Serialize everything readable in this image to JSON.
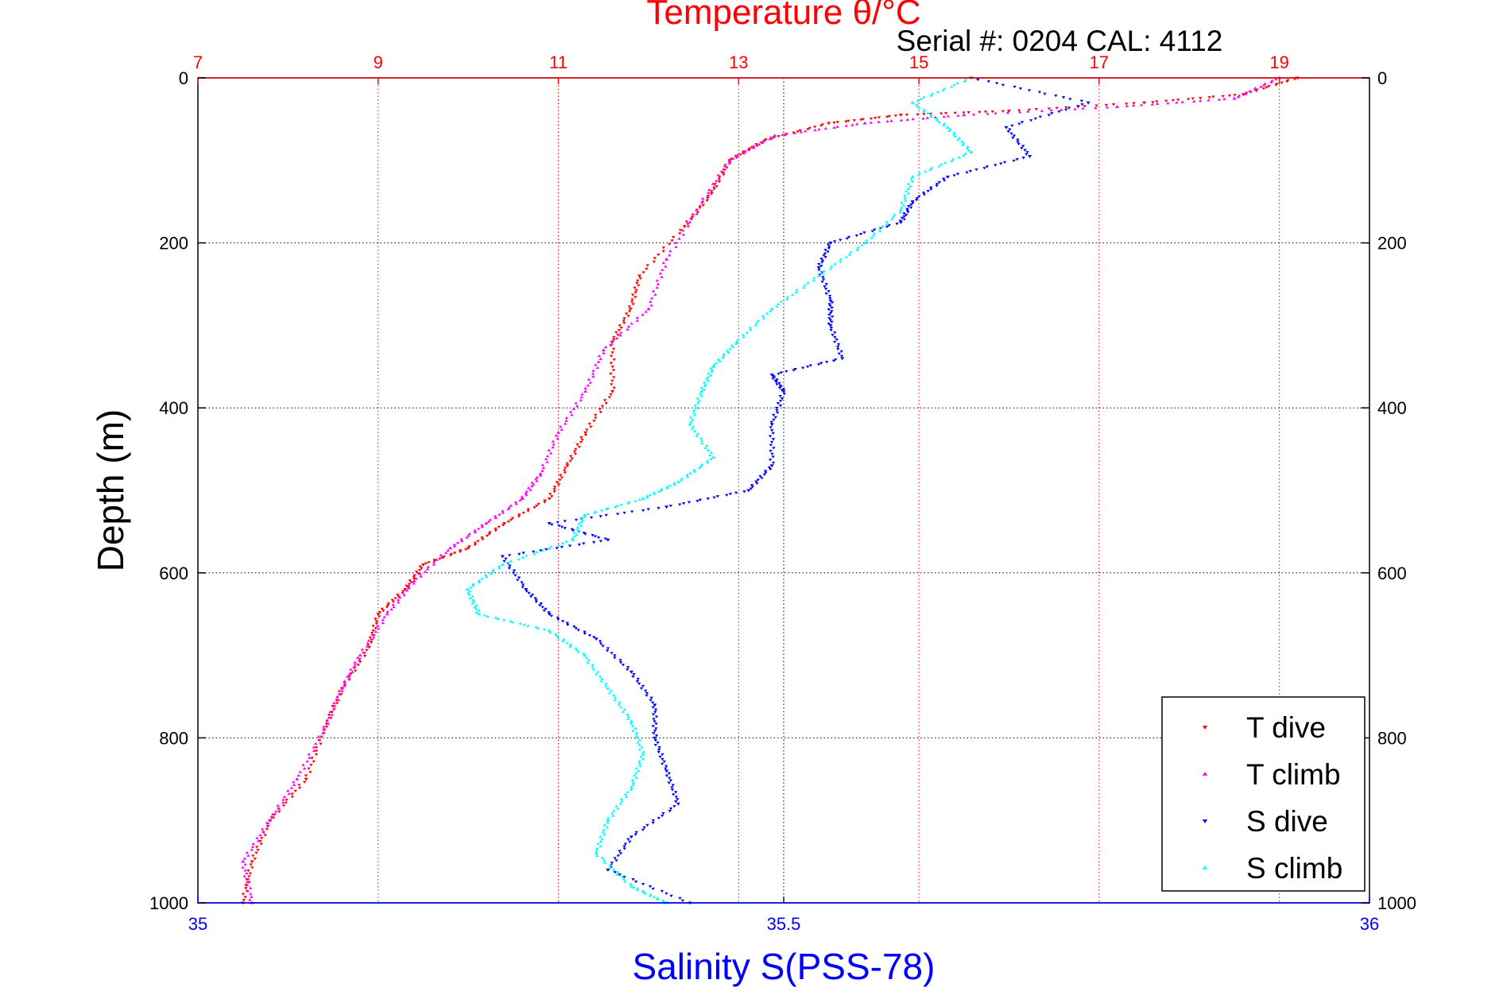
{
  "chart_data": {
    "type": "scatter",
    "title": "Temperature θ/°C",
    "subtitle": "Serial #: 0204  CAL: 4112",
    "xlabel_bottom": "Salinity S(PSS-78)",
    "ylabel": "Depth (m)",
    "xlim_top": [
      7,
      20
    ],
    "xticks_top": [
      "7",
      "9",
      "11",
      "13",
      "15",
      "17",
      "19"
    ],
    "xlim_bottom": [
      35,
      36
    ],
    "xticks_bottom": [
      "35",
      "35.5",
      "36"
    ],
    "ylim": [
      0,
      1000
    ],
    "y_reversed": true,
    "yticks": [
      "0",
      "200",
      "400",
      "600",
      "800",
      "1000"
    ],
    "grid": true,
    "legend_position": "bottom-right",
    "series": [
      {
        "name": "T dive",
        "axis": "temperature",
        "color": "#ff0000",
        "marker": "triangle-down",
        "points": [
          [
            19.2,
            0
          ],
          [
            18.6,
            20
          ],
          [
            17.5,
            30
          ],
          [
            16.0,
            40
          ],
          [
            14.8,
            45
          ],
          [
            14.0,
            55
          ],
          [
            13.3,
            75
          ],
          [
            12.9,
            100
          ],
          [
            12.7,
            140
          ],
          [
            12.4,
            180
          ],
          [
            11.9,
            240
          ],
          [
            11.8,
            280
          ],
          [
            11.6,
            320
          ],
          [
            11.6,
            380
          ],
          [
            11.3,
            430
          ],
          [
            11.1,
            470
          ],
          [
            10.9,
            510
          ],
          [
            10.4,
            540
          ],
          [
            10.0,
            570
          ],
          [
            9.5,
            590
          ],
          [
            9.3,
            620
          ],
          [
            9.0,
            650
          ],
          [
            8.9,
            690
          ],
          [
            8.6,
            740
          ],
          [
            8.4,
            790
          ],
          [
            8.2,
            850
          ],
          [
            7.8,
            900
          ],
          [
            7.6,
            950
          ],
          [
            7.5,
            1000
          ]
        ]
      },
      {
        "name": "T climb",
        "axis": "temperature",
        "color": "#ff00ff",
        "marker": "triangle-up",
        "points": [
          [
            19.0,
            0
          ],
          [
            18.5,
            25
          ],
          [
            17.2,
            35
          ],
          [
            15.5,
            45
          ],
          [
            14.4,
            55
          ],
          [
            13.4,
            70
          ],
          [
            12.9,
            100
          ],
          [
            12.6,
            150
          ],
          [
            12.2,
            220
          ],
          [
            12.0,
            280
          ],
          [
            11.5,
            330
          ],
          [
            11.3,
            380
          ],
          [
            11.0,
            430
          ],
          [
            10.8,
            480
          ],
          [
            10.6,
            510
          ],
          [
            10.2,
            540
          ],
          [
            9.8,
            570
          ],
          [
            9.4,
            610
          ],
          [
            9.1,
            650
          ],
          [
            8.8,
            700
          ],
          [
            8.6,
            740
          ],
          [
            8.4,
            790
          ],
          [
            8.1,
            850
          ],
          [
            7.8,
            900
          ],
          [
            7.5,
            950
          ],
          [
            7.6,
            1000
          ]
        ]
      },
      {
        "name": "S dive",
        "axis": "salinity",
        "color": "#0000ff",
        "marker": "triangle-down",
        "points": [
          [
            35.66,
            0
          ],
          [
            35.76,
            30
          ],
          [
            35.69,
            60
          ],
          [
            35.71,
            95
          ],
          [
            35.64,
            120
          ],
          [
            35.61,
            150
          ],
          [
            35.6,
            175
          ],
          [
            35.54,
            200
          ],
          [
            35.53,
            230
          ],
          [
            35.54,
            270
          ],
          [
            35.54,
            300
          ],
          [
            35.55,
            340
          ],
          [
            35.49,
            360
          ],
          [
            35.5,
            380
          ],
          [
            35.49,
            420
          ],
          [
            35.49,
            470
          ],
          [
            35.47,
            500
          ],
          [
            35.4,
            520
          ],
          [
            35.3,
            540
          ],
          [
            35.35,
            560
          ],
          [
            35.26,
            580
          ],
          [
            35.28,
            620
          ],
          [
            35.3,
            650
          ],
          [
            35.34,
            680
          ],
          [
            35.37,
            720
          ],
          [
            35.39,
            760
          ],
          [
            35.39,
            800
          ],
          [
            35.4,
            840
          ],
          [
            35.41,
            880
          ],
          [
            35.37,
            920
          ],
          [
            35.35,
            960
          ],
          [
            35.42,
            1000
          ]
        ]
      },
      {
        "name": "S climb",
        "axis": "salinity",
        "color": "#00ffff",
        "marker": "triangle-up",
        "points": [
          [
            35.66,
            0
          ],
          [
            35.61,
            30
          ],
          [
            35.64,
            60
          ],
          [
            35.66,
            90
          ],
          [
            35.61,
            120
          ],
          [
            35.6,
            160
          ],
          [
            35.57,
            200
          ],
          [
            35.53,
            240
          ],
          [
            35.49,
            280
          ],
          [
            35.46,
            320
          ],
          [
            35.44,
            350
          ],
          [
            35.43,
            380
          ],
          [
            35.42,
            420
          ],
          [
            35.44,
            460
          ],
          [
            35.41,
            490
          ],
          [
            35.38,
            510
          ],
          [
            35.33,
            530
          ],
          [
            35.32,
            560
          ],
          [
            35.26,
            590
          ],
          [
            35.23,
            620
          ],
          [
            35.24,
            650
          ],
          [
            35.3,
            670
          ],
          [
            35.33,
            700
          ],
          [
            35.35,
            740
          ],
          [
            35.37,
            780
          ],
          [
            35.38,
            820
          ],
          [
            35.37,
            860
          ],
          [
            35.35,
            900
          ],
          [
            35.34,
            940
          ],
          [
            35.37,
            980
          ],
          [
            35.4,
            1000
          ]
        ]
      }
    ]
  }
}
